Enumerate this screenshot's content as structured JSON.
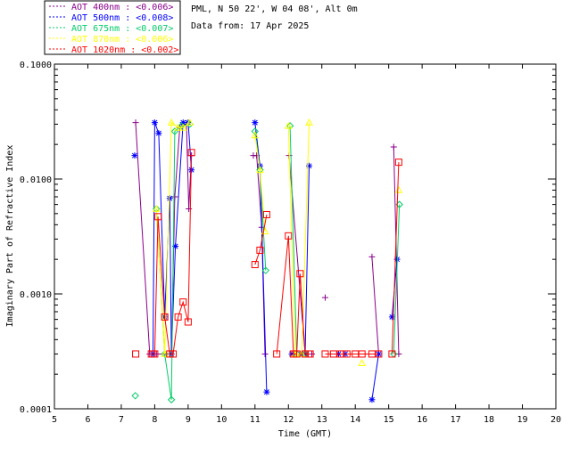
{
  "header": {
    "site": "PML, N 50 22', W 04 08', Alt 0m",
    "date_line": "Data from: 17 Apr 2025"
  },
  "chart_data": {
    "type": "line",
    "xlabel": "Time (GMT)",
    "ylabel": "Imaginary Part of Refractive Index",
    "xlim": [
      5,
      20
    ],
    "ylim": [
      0.0001,
      0.1
    ],
    "yscale": "log",
    "xticks": [
      "5",
      "6",
      "7",
      "8",
      "9",
      "10",
      "11",
      "12",
      "13",
      "14",
      "15",
      "16",
      "17",
      "18",
      "19",
      "20"
    ],
    "yticks": [
      "0.0001",
      "0.0010",
      "0.0100",
      "0.1000"
    ],
    "legend_position": "top-left-outside",
    "series": [
      {
        "name": "AOT  400nm : <0.006>",
        "color": "#8b008b",
        "marker": "plus",
        "points": [
          [
            7.43,
            0.031
          ],
          [
            7.85,
            0.0003
          ],
          [
            8.05,
            0.0003
          ],
          [
            8.3,
            0.0003
          ],
          [
            8.5,
            0.0003
          ],
          [
            8.6,
            0.007
          ],
          [
            8.75,
            0.028
          ],
          [
            8.85,
            0.03
          ],
          [
            8.95,
            0.03
          ],
          [
            9.02,
            0.0055
          ],
          [
            9.1,
            0.016
          ],
          null,
          [
            10.95,
            0.016
          ],
          [
            11.05,
            0.016
          ],
          [
            11.2,
            0.0038
          ],
          [
            11.3,
            0.0003
          ],
          null,
          [
            12.02,
            0.016
          ],
          [
            12.5,
            0.0003
          ],
          [
            12.7,
            0.0003
          ],
          null,
          [
            13.1,
            0.00093
          ],
          null,
          [
            14.5,
            0.0021
          ],
          [
            14.7,
            0.0003
          ],
          null,
          [
            15.15,
            0.019
          ],
          [
            15.3,
            0.0003
          ]
        ]
      },
      {
        "name": "AOT  500nm : <0.008>",
        "color": "#0000ff",
        "marker": "star",
        "points": [
          [
            7.4,
            0.016
          ],
          null,
          [
            7.95,
            0.0003
          ],
          [
            8.0,
            0.031
          ],
          [
            8.12,
            0.025
          ],
          [
            8.3,
            0.00063
          ],
          [
            8.45,
            0.0068
          ],
          [
            8.5,
            0.0003
          ],
          [
            8.62,
            0.0026
          ],
          [
            8.85,
            0.031
          ],
          [
            9.0,
            0.031
          ],
          [
            9.1,
            0.012
          ],
          null,
          [
            11.0,
            0.031
          ],
          [
            11.15,
            0.013
          ],
          [
            11.35,
            0.00014
          ],
          null,
          [
            12.1,
            0.0003
          ],
          [
            12.35,
            0.0003
          ],
          [
            12.5,
            0.0003
          ],
          [
            12.62,
            0.013
          ],
          null,
          [
            13.5,
            0.0003
          ],
          [
            13.7,
            0.0003
          ],
          null,
          [
            14.5,
            0.00012
          ],
          [
            14.7,
            0.0003
          ],
          null,
          [
            15.1,
            0.00063
          ],
          [
            15.25,
            0.002
          ]
        ]
      },
      {
        "name": "AOT  675nm : <0.007>",
        "color": "#00cd66",
        "marker": "diamond",
        "points": [
          [
            7.42,
            0.00013
          ],
          null,
          [
            8.05,
            0.0055
          ],
          [
            8.3,
            0.0003
          ],
          [
            8.5,
            0.00012
          ],
          [
            8.6,
            0.026
          ],
          [
            8.8,
            0.029
          ],
          [
            9.05,
            0.03
          ],
          null,
          [
            11.0,
            0.026
          ],
          [
            11.15,
            0.012
          ],
          [
            11.32,
            0.0016
          ],
          null,
          [
            12.05,
            0.029
          ],
          [
            12.25,
            0.0003
          ],
          [
            12.5,
            0.0003
          ],
          null,
          [
            15.15,
            0.0003
          ],
          [
            15.32,
            0.006
          ]
        ]
      },
      {
        "name": "AOT  870nm : <0.006>",
        "color": "#ffff00",
        "marker": "triangle",
        "points": [
          [
            8.05,
            0.0055
          ],
          [
            8.3,
            0.0003
          ],
          [
            8.5,
            0.031
          ],
          [
            8.7,
            0.028
          ],
          [
            8.85,
            0.028
          ],
          [
            9.05,
            0.031
          ],
          null,
          [
            11.0,
            0.024
          ],
          [
            11.15,
            0.012
          ],
          [
            11.3,
            0.0035
          ],
          null,
          [
            12.0,
            0.029
          ],
          [
            12.2,
            0.0003
          ],
          [
            12.4,
            0.0003
          ],
          [
            12.62,
            0.031
          ],
          null,
          [
            14.2,
            0.00025
          ],
          null,
          [
            15.3,
            0.008
          ]
        ]
      },
      {
        "name": "AOT 1020nm : <0.002>",
        "color": "#ff0000",
        "marker": "square",
        "points": [
          [
            7.43,
            0.0003
          ],
          null,
          [
            7.9,
            0.0003
          ],
          [
            8.0,
            0.0003
          ],
          [
            8.1,
            0.0047
          ],
          [
            8.3,
            0.00063
          ],
          [
            8.45,
            0.0003
          ],
          [
            8.55,
            0.0003
          ],
          [
            8.7,
            0.00063
          ],
          [
            8.85,
            0.00085
          ],
          [
            9.0,
            0.00057
          ],
          [
            9.1,
            0.017
          ],
          null,
          [
            11.0,
            0.0018
          ],
          [
            11.15,
            0.0024
          ],
          [
            11.35,
            0.0049
          ],
          null,
          [
            11.65,
            0.0003
          ],
          [
            12.0,
            0.0032
          ],
          [
            12.15,
            0.0003
          ],
          [
            12.25,
            0.0003
          ],
          [
            12.35,
            0.0015
          ],
          [
            12.5,
            0.0003
          ],
          [
            12.65,
            0.0003
          ],
          null,
          [
            13.1,
            0.0003
          ],
          [
            13.35,
            0.0003
          ],
          [
            13.55,
            0.0003
          ],
          [
            13.75,
            0.0003
          ],
          [
            14.0,
            0.0003
          ],
          [
            14.2,
            0.0003
          ],
          [
            14.5,
            0.0003
          ],
          [
            14.7,
            0.0003
          ],
          null,
          [
            15.1,
            0.0003
          ],
          [
            15.3,
            0.014
          ]
        ]
      }
    ]
  }
}
